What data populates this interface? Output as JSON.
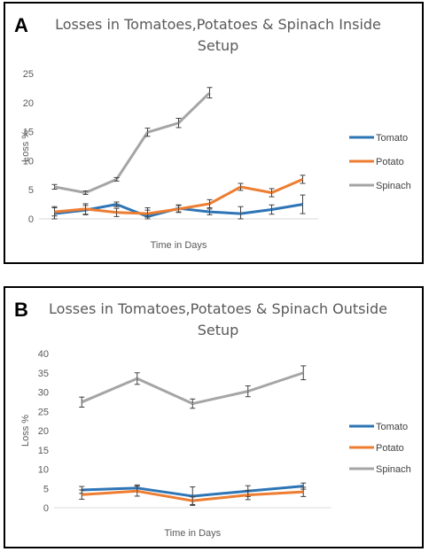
{
  "chart_data": [
    {
      "type": "line",
      "panel_label": "A",
      "title": "Losses in Tomatoes,Potatoes & Spinach Inside Setup",
      "xlabel": "Time in Days",
      "ylabel": "Loss %",
      "ylim": [
        0,
        25
      ],
      "yticks": [
        "0",
        "5",
        "10",
        "15",
        "20",
        "25"
      ],
      "grid": false,
      "legend": "right",
      "series": [
        {
          "name": "Tomato",
          "color": "#2E75B6",
          "values": [
            0.9,
            1.5,
            2.5,
            0.4,
            1.8,
            1.2,
            0.9,
            1.6,
            2.5
          ],
          "errors": [
            1.2,
            0.8,
            0.4,
            1.5,
            0.6,
            0.5,
            1.2,
            0.8,
            1.6
          ]
        },
        {
          "name": "Potato",
          "color": "#ED7D31",
          "values": [
            1.2,
            1.7,
            1.1,
            0.9,
            1.7,
            2.6,
            5.5,
            4.5,
            6.8
          ],
          "errors": [
            0.7,
            0.9,
            0.7,
            0.6,
            0.6,
            0.7,
            0.6,
            0.7,
            0.7
          ]
        },
        {
          "name": "Spinach",
          "color": "#A5A5A5",
          "values": [
            5.5,
            4.5,
            6.8,
            14.9,
            16.5,
            21.7
          ],
          "errors": [
            0.4,
            0.3,
            0.3,
            0.7,
            0.8,
            0.9
          ]
        }
      ]
    },
    {
      "type": "line",
      "panel_label": "B",
      "title": "Losses in Tomatoes,Potatoes & Spinach Outside Setup",
      "xlabel": "Time in Days",
      "ylabel": "Loss %",
      "ylim": [
        0,
        40
      ],
      "yticks": [
        "0",
        "5",
        "10",
        "15",
        "20",
        "25",
        "30",
        "35",
        "40"
      ],
      "grid": false,
      "legend": "right",
      "series": [
        {
          "name": "Tomato",
          "color": "#2E75B6",
          "values": [
            4.6,
            5.1,
            3.0,
            4.3,
            5.6
          ],
          "errors": [
            0.9,
            0.8,
            2.4,
            1.4,
            0.8
          ]
        },
        {
          "name": "Potato",
          "color": "#ED7D31",
          "values": [
            3.4,
            4.3,
            1.8,
            3.3,
            4.1
          ],
          "errors": [
            1.2,
            1.3,
            1.0,
            1.2,
            1.2
          ]
        },
        {
          "name": "Spinach",
          "color": "#A5A5A5",
          "values": [
            27.4,
            33.5,
            27.0,
            30.2,
            35.0
          ],
          "errors": [
            1.3,
            1.5,
            1.2,
            1.4,
            1.8
          ]
        }
      ]
    }
  ]
}
